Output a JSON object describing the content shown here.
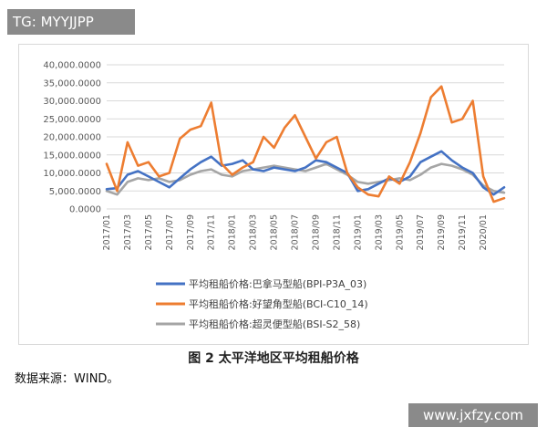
{
  "watermark_top": "TG: MYYJJPP",
  "watermark_bottom": "www.jxfzy.com",
  "caption": "图 2  太平洋地区平均租船价格",
  "source": "数据来源：WIND。",
  "chart_data": {
    "type": "line",
    "title": "",
    "xlabel": "",
    "ylabel": "",
    "ylim": [
      0,
      40000
    ],
    "yticks": [
      "40,000.0000",
      "35,000.0000",
      "30,000.0000",
      "25,000.0000",
      "20,000.0000",
      "15,000.0000",
      "10,000.0000",
      "5,000.0000",
      "0.0000"
    ],
    "yticks_values": [
      40000,
      35000,
      30000,
      25000,
      20000,
      15000,
      10000,
      5000,
      0
    ],
    "xticks": [
      "2017/01",
      "2017/03",
      "2017/05",
      "2017/07",
      "2017/09",
      "2017/11",
      "2018/01",
      "2018/03",
      "2018/05",
      "2018/07",
      "2018/09",
      "2018/11",
      "2019/01",
      "2019/03",
      "2019/05",
      "2019/07",
      "2019/09",
      "2019/11",
      "2020/01"
    ],
    "xlim": [
      "2017/01",
      "2020/03"
    ],
    "grid": true,
    "legend_position": "bottom",
    "series": [
      {
        "name": "平均租船价格:巴拿马型船(BPI-P3A_03)",
        "color": "#4472c4",
        "x": [
          "2017/01",
          "2017/02",
          "2017/03",
          "2017/04",
          "2017/05",
          "2017/06",
          "2017/07",
          "2017/08",
          "2017/09",
          "2017/10",
          "2017/11",
          "2017/12",
          "2018/01",
          "2018/02",
          "2018/03",
          "2018/04",
          "2018/05",
          "2018/06",
          "2018/07",
          "2018/08",
          "2018/09",
          "2018/10",
          "2018/11",
          "2018/12",
          "2019/01",
          "2019/02",
          "2019/03",
          "2019/04",
          "2019/05",
          "2019/06",
          "2019/07",
          "2019/08",
          "2019/09",
          "2019/10",
          "2019/11",
          "2019/12",
          "2020/01",
          "2020/02",
          "2020/03"
        ],
        "values": [
          5500,
          5800,
          9500,
          10500,
          9000,
          7500,
          6000,
          8500,
          11000,
          13000,
          14500,
          12000,
          12500,
          13500,
          11000,
          10500,
          11500,
          11000,
          10500,
          11500,
          13500,
          13000,
          11500,
          10000,
          5000,
          5500,
          7000,
          8500,
          7500,
          9000,
          13000,
          14500,
          16000,
          13500,
          11500,
          10000,
          6000,
          4000,
          6000
        ]
      },
      {
        "name": "平均租船价格:好望角型船(BCI-C10_14)",
        "color": "#ed7d31",
        "x": [
          "2017/01",
          "2017/02",
          "2017/03",
          "2017/04",
          "2017/05",
          "2017/06",
          "2017/07",
          "2017/08",
          "2017/09",
          "2017/10",
          "2017/11",
          "2017/12",
          "2018/01",
          "2018/02",
          "2018/03",
          "2018/04",
          "2018/05",
          "2018/06",
          "2018/07",
          "2018/08",
          "2018/09",
          "2018/10",
          "2018/11",
          "2018/12",
          "2019/01",
          "2019/02",
          "2019/03",
          "2019/04",
          "2019/05",
          "2019/06",
          "2019/07",
          "2019/08",
          "2019/09",
          "2019/10",
          "2019/11",
          "2019/12",
          "2020/01",
          "2020/02",
          "2020/03"
        ],
        "values": [
          12500,
          5000,
          18500,
          12000,
          13000,
          9000,
          10000,
          19500,
          22000,
          23000,
          29500,
          12500,
          9500,
          11500,
          13000,
          20000,
          17000,
          22500,
          26000,
          20000,
          14000,
          18500,
          20000,
          10000,
          6000,
          4000,
          3500,
          9000,
          7000,
          13000,
          21000,
          31000,
          34000,
          24000,
          25000,
          30000,
          9000,
          2000,
          3000
        ]
      },
      {
        "name": "平均租船价格:超灵便型船(BSI-S2_58)",
        "color": "#a5a5a5",
        "x": [
          "2017/01",
          "2017/02",
          "2017/03",
          "2017/04",
          "2017/05",
          "2017/06",
          "2017/07",
          "2017/08",
          "2017/09",
          "2017/10",
          "2017/11",
          "2017/12",
          "2018/01",
          "2018/02",
          "2018/03",
          "2018/04",
          "2018/05",
          "2018/06",
          "2018/07",
          "2018/08",
          "2018/09",
          "2018/10",
          "2018/11",
          "2018/12",
          "2019/01",
          "2019/02",
          "2019/03",
          "2019/04",
          "2019/05",
          "2019/06",
          "2019/07",
          "2019/08",
          "2019/09",
          "2019/10",
          "2019/11",
          "2019/12",
          "2020/01",
          "2020/02",
          "2020/03"
        ],
        "values": [
          5000,
          4000,
          7500,
          8500,
          8000,
          8500,
          7500,
          8000,
          9500,
          10500,
          11000,
          9500,
          9000,
          10500,
          11000,
          11500,
          12000,
          11500,
          11000,
          10500,
          11500,
          12500,
          11000,
          9500,
          7500,
          7000,
          7500,
          8000,
          8500,
          8000,
          9500,
          11500,
          12500,
          12000,
          11000,
          9500,
          6500,
          5000,
          4500
        ]
      }
    ]
  }
}
